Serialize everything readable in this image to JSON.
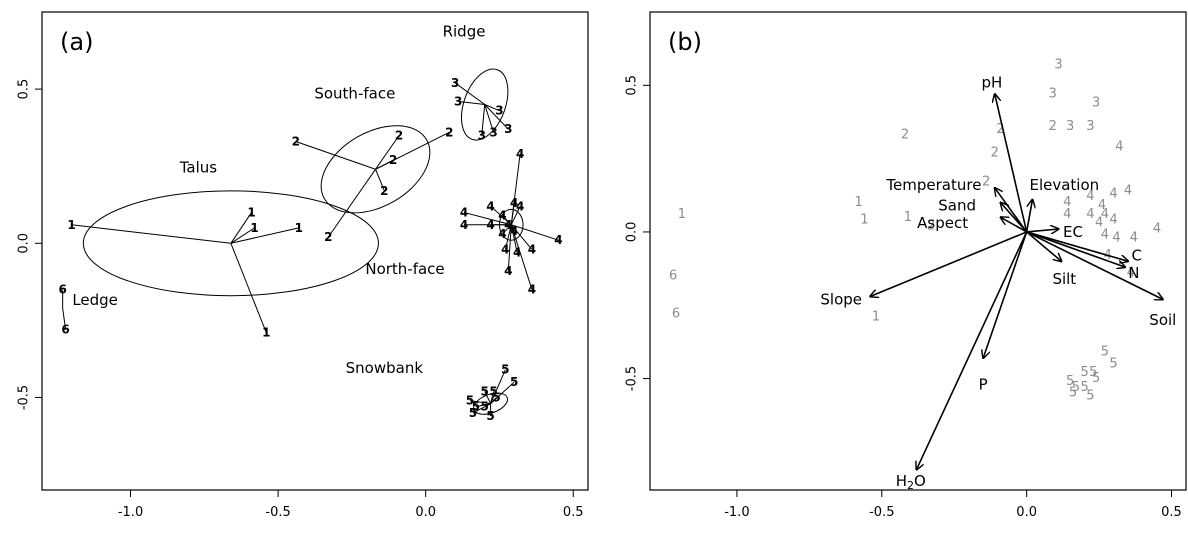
{
  "chart_data": [
    {
      "type": "scatter",
      "panel_label": "(a)",
      "xlim": [
        -1.3,
        0.55
      ],
      "ylim": [
        -0.8,
        0.75
      ],
      "xticks": [
        "-1.0",
        "-0.5",
        "0.0",
        "0.5"
      ],
      "xtick_values": [
        -1.0,
        -0.5,
        0.0,
        0.5
      ],
      "yticks": [
        "-0.5",
        "0.0",
        "0.5"
      ],
      "ytick_values": [
        -0.5,
        0.0,
        0.5
      ],
      "groups": [
        {
          "name": "Ledge",
          "site": "6",
          "label_pos": [
            -1.12,
            -0.2
          ],
          "centroid": [
            -1.23,
            -0.21
          ],
          "points": [
            [
              -1.23,
              -0.15
            ],
            [
              -1.22,
              -0.28
            ]
          ]
        },
        {
          "name": "Talus",
          "site": "1",
          "label_pos": [
            -0.77,
            0.23
          ],
          "centroid": [
            -0.66,
            0.0
          ],
          "ellipse": {
            "rx": 0.5,
            "ry": 0.17,
            "angle": 0
          },
          "points": [
            [
              -1.2,
              0.06
            ],
            [
              -0.59,
              0.1
            ],
            [
              -0.58,
              0.05
            ],
            [
              -0.43,
              0.05
            ],
            [
              -0.54,
              -0.29
            ]
          ]
        },
        {
          "name": "South-face",
          "site": "2",
          "label_pos": [
            -0.24,
            0.47
          ],
          "centroid": [
            -0.17,
            0.24
          ],
          "ellipse": {
            "rx": 0.2,
            "ry": 0.12,
            "angle": -30
          },
          "points": [
            [
              -0.44,
              0.33
            ],
            [
              -0.09,
              0.35
            ],
            [
              -0.11,
              0.27
            ],
            [
              -0.14,
              0.17
            ],
            [
              -0.33,
              0.02
            ],
            [
              0.08,
              0.36
            ]
          ]
        },
        {
          "name": "Ridge",
          "site": "3",
          "label_pos": [
            0.13,
            0.67
          ],
          "centroid": [
            0.2,
            0.45
          ],
          "ellipse": {
            "rx": 0.07,
            "ry": 0.12,
            "angle": 20
          },
          "points": [
            [
              0.1,
              0.52
            ],
            [
              0.11,
              0.46
            ],
            [
              0.25,
              0.43
            ],
            [
              0.19,
              0.35
            ],
            [
              0.23,
              0.36
            ],
            [
              0.28,
              0.37
            ]
          ]
        },
        {
          "name": "North-face",
          "site": "4",
          "label_pos": [
            -0.07,
            -0.1
          ],
          "centroid": [
            0.29,
            0.06
          ],
          "ellipse": {
            "rx": 0.04,
            "ry": 0.05,
            "angle": 0
          },
          "points": [
            [
              0.32,
              0.29
            ],
            [
              0.13,
              0.1
            ],
            [
              0.13,
              0.06
            ],
            [
              0.22,
              0.12
            ],
            [
              0.3,
              0.13
            ],
            [
              0.32,
              0.12
            ],
            [
              0.22,
              0.06
            ],
            [
              0.26,
              0.09
            ],
            [
              0.28,
              0.06
            ],
            [
              0.26,
              0.03
            ],
            [
              0.3,
              0.04
            ],
            [
              0.45,
              0.01
            ],
            [
              0.31,
              -0.03
            ],
            [
              0.27,
              -0.02
            ],
            [
              0.36,
              -0.02
            ],
            [
              0.28,
              -0.09
            ],
            [
              0.36,
              -0.15
            ]
          ]
        },
        {
          "name": "Snowbank",
          "site": "5",
          "label_pos": [
            -0.14,
            -0.42
          ],
          "centroid": [
            0.22,
            -0.52
          ],
          "ellipse": {
            "rx": 0.06,
            "ry": 0.03,
            "angle": -20
          },
          "points": [
            [
              0.27,
              -0.41
            ],
            [
              0.3,
              -0.45
            ],
            [
              0.2,
              -0.48
            ],
            [
              0.23,
              -0.48
            ],
            [
              0.24,
              -0.5
            ],
            [
              0.15,
              -0.51
            ],
            [
              0.17,
              -0.53
            ],
            [
              0.2,
              -0.53
            ],
            [
              0.16,
              -0.55
            ],
            [
              0.22,
              -0.56
            ]
          ]
        }
      ]
    },
    {
      "type": "biplot",
      "panel_label": "(b)",
      "xlim": [
        -1.3,
        0.55
      ],
      "ylim": [
        -0.88,
        0.75
      ],
      "xticks": [
        "-1.0",
        "-0.5",
        "0.0",
        "0.5"
      ],
      "xtick_values": [
        -1.0,
        -0.5,
        0.0,
        0.5
      ],
      "yticks": [
        "-0.5",
        "0.0",
        "0.5"
      ],
      "ytick_values": [
        -0.5,
        0.0,
        0.5
      ],
      "sites": [
        [
          "1",
          -1.19,
          0.06
        ],
        [
          "1",
          -0.58,
          0.1
        ],
        [
          "1",
          -0.56,
          0.04
        ],
        [
          "1",
          -0.41,
          0.05
        ],
        [
          "1",
          -0.52,
          -0.29
        ],
        [
          "2",
          -0.42,
          0.33
        ],
        [
          "2",
          -0.09,
          0.35
        ],
        [
          "2",
          -0.11,
          0.27
        ],
        [
          "2",
          -0.14,
          0.17
        ],
        [
          "2",
          -0.33,
          0.02
        ],
        [
          "2",
          0.09,
          0.36
        ],
        [
          "3",
          0.11,
          0.57
        ],
        [
          "3",
          0.09,
          0.47
        ],
        [
          "3",
          0.24,
          0.44
        ],
        [
          "3",
          0.15,
          0.36
        ],
        [
          "3",
          0.22,
          0.36
        ],
        [
          "4",
          0.32,
          0.29
        ],
        [
          "4",
          0.14,
          0.1
        ],
        [
          "4",
          0.14,
          0.06
        ],
        [
          "4",
          0.22,
          0.12
        ],
        [
          "4",
          0.3,
          0.13
        ],
        [
          "4",
          0.35,
          0.14
        ],
        [
          "4",
          0.22,
          0.06
        ],
        [
          "4",
          0.26,
          0.09
        ],
        [
          "4",
          0.27,
          0.06
        ],
        [
          "4",
          0.25,
          0.03
        ],
        [
          "4",
          0.3,
          0.04
        ],
        [
          "4",
          0.45,
          0.01
        ],
        [
          "4",
          0.31,
          -0.02
        ],
        [
          "4",
          0.27,
          -0.01
        ],
        [
          "4",
          0.37,
          -0.02
        ],
        [
          "4",
          0.28,
          -0.08
        ],
        [
          "4",
          0.36,
          -0.14
        ],
        [
          "5",
          0.27,
          -0.41
        ],
        [
          "5",
          0.3,
          -0.45
        ],
        [
          "5",
          0.2,
          -0.48
        ],
        [
          "5",
          0.23,
          -0.48
        ],
        [
          "5",
          0.24,
          -0.5
        ],
        [
          "5",
          0.15,
          -0.51
        ],
        [
          "5",
          0.17,
          -0.53
        ],
        [
          "5",
          0.2,
          -0.53
        ],
        [
          "5",
          0.16,
          -0.55
        ],
        [
          "5",
          0.22,
          -0.56
        ],
        [
          "6",
          -1.22,
          -0.15
        ],
        [
          "6",
          -1.21,
          -0.28
        ]
      ],
      "vectors": [
        {
          "name": "pH",
          "x": -0.11,
          "y": 0.47,
          "label_at": [
            -0.12,
            0.51
          ]
        },
        {
          "name": "Temperature",
          "x": -0.11,
          "y": 0.15,
          "label_at": [
            -0.32,
            0.16
          ]
        },
        {
          "name": "Elevation",
          "x": 0.02,
          "y": 0.11,
          "label_at": [
            0.13,
            0.16
          ]
        },
        {
          "name": "Sand",
          "x": -0.09,
          "y": 0.1,
          "label_at": [
            -0.24,
            0.09
          ]
        },
        {
          "name": "Aspect",
          "x": -0.09,
          "y": 0.05,
          "label_at": [
            -0.29,
            0.03
          ]
        },
        {
          "name": "EC",
          "x": 0.11,
          "y": 0.01,
          "label_at": [
            0.16,
            0.0
          ]
        },
        {
          "name": "C",
          "x": 0.35,
          "y": -0.1,
          "label_at": [
            0.38,
            -0.08
          ]
        },
        {
          "name": "N",
          "x": 0.34,
          "y": -0.12,
          "label_at": [
            0.37,
            -0.14
          ]
        },
        {
          "name": "Silt",
          "x": 0.12,
          "y": -0.1,
          "label_at": [
            0.13,
            -0.16
          ]
        },
        {
          "name": "Soil",
          "x": 0.47,
          "y": -0.23,
          "label_at": [
            0.47,
            -0.3
          ]
        },
        {
          "name": "Slope",
          "x": -0.54,
          "y": -0.22,
          "label_at": [
            -0.64,
            -0.23
          ]
        },
        {
          "name": "P",
          "x": -0.15,
          "y": -0.43,
          "label_at": [
            -0.15,
            -0.52
          ]
        },
        {
          "name": "H2O",
          "x": -0.38,
          "y": -0.81,
          "label_at": [
            -0.4,
            -0.85
          ]
        }
      ]
    }
  ]
}
